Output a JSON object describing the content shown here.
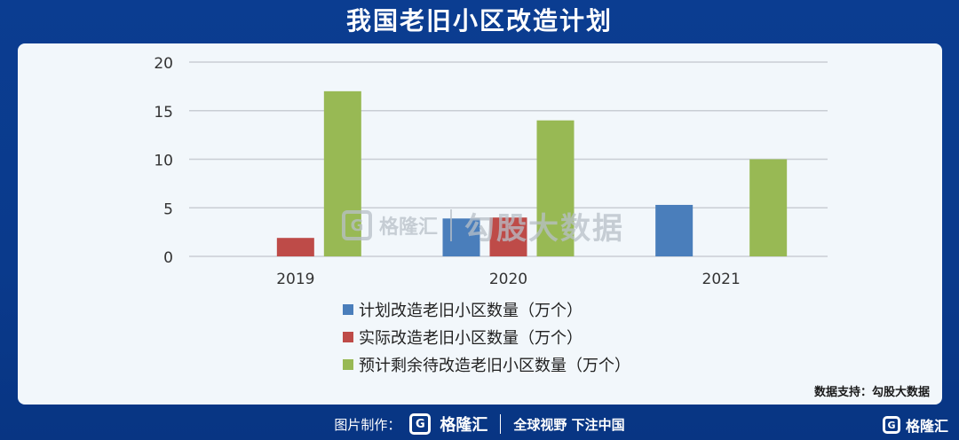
{
  "title": "我国老旧小区改造计划",
  "source": "数据支持：勾股大数据",
  "watermark": {
    "brand": "格隆汇",
    "text": "勾股大数据"
  },
  "footer": {
    "made_by": "图片制作：",
    "brand": "格隆汇",
    "slogan": "全球视野 下注中国"
  },
  "corner_brand": "格隆汇",
  "chart_data": {
    "type": "bar",
    "title": "",
    "xlabel": "",
    "ylabel": "",
    "categories": [
      "2019",
      "2020",
      "2021"
    ],
    "ylim": [
      0,
      20
    ],
    "yticks": [
      0,
      5,
      10,
      15,
      20
    ],
    "grid": true,
    "legend": "bottom",
    "series": [
      {
        "name": "计划改造老旧小区数量（万个）",
        "color": "#4a7ebb",
        "values": [
          0,
          3.9,
          5.3
        ]
      },
      {
        "name": "实际改造老旧小区数量（万个）",
        "color": "#be4b48",
        "values": [
          1.9,
          4.0,
          0
        ]
      },
      {
        "name": "预计剩余待改造老旧小区数量（万个）",
        "color": "#98b954",
        "values": [
          17,
          14,
          10
        ]
      }
    ]
  }
}
